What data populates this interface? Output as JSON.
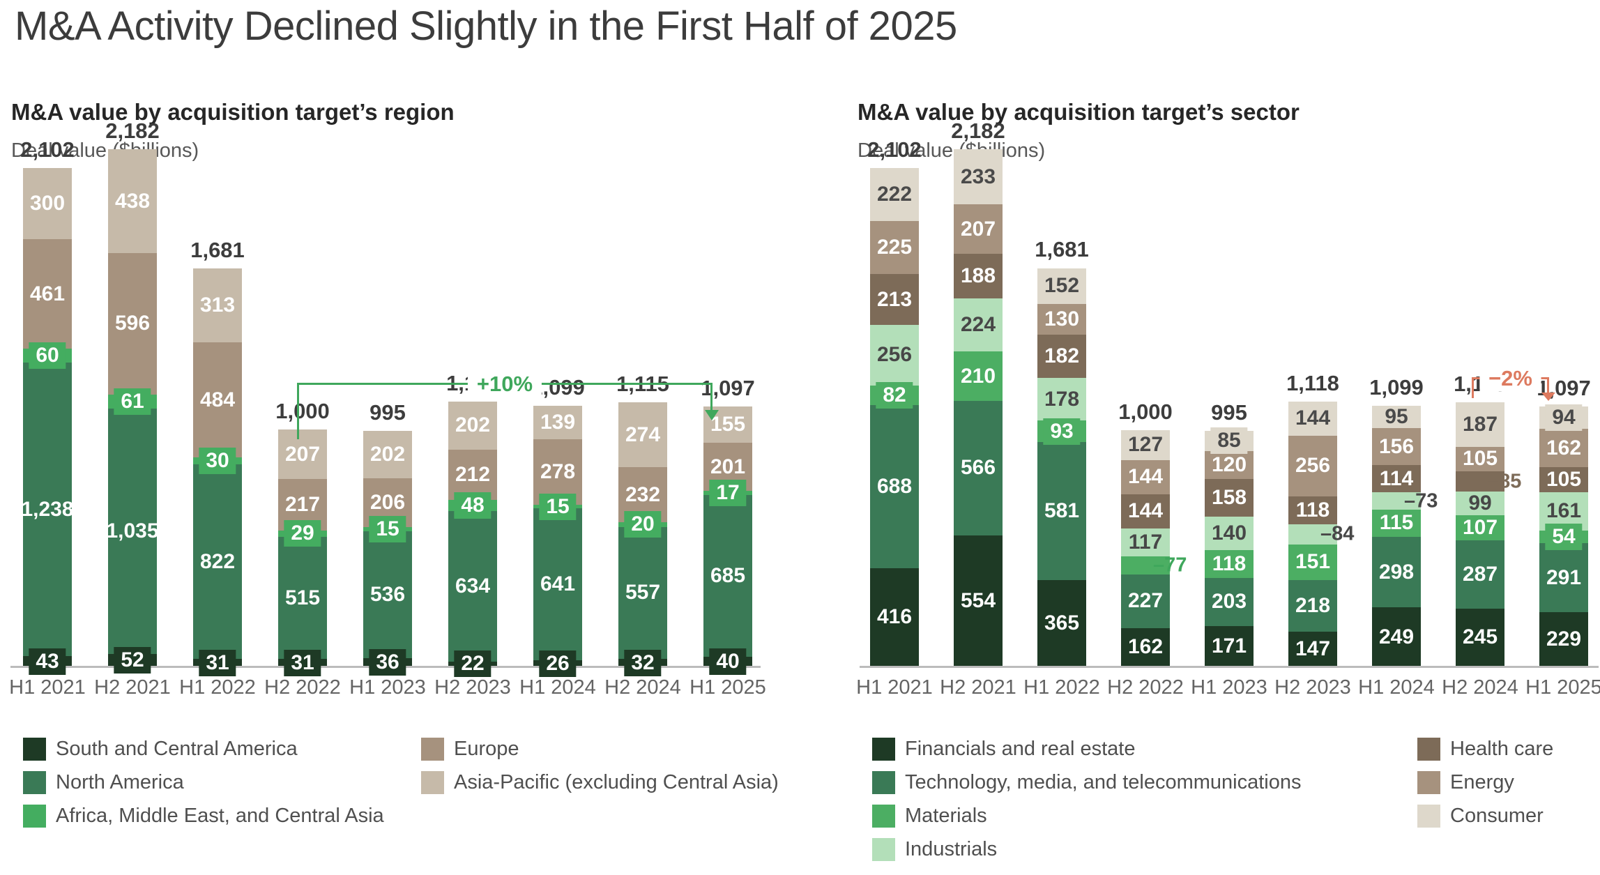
{
  "page_title": "M&A Activity Declined Slightly in the First Half of 2025",
  "chart_data": [
    {
      "type": "bar",
      "stacked": true,
      "title": "M&A value by acquisition target’s region",
      "subtitle": "Deal value ($billions)",
      "unit": "$billions",
      "gridlines": false,
      "legend_position": "bottom",
      "categories": [
        "H1 2021",
        "H2 2021",
        "H1 2022",
        "H2 2022",
        "H1 2023",
        "H2 2023",
        "H1 2024",
        "H2 2024",
        "H1 2025"
      ],
      "totals": [
        2102,
        2182,
        1681,
        1000,
        995,
        1118,
        1099,
        1115,
        1097
      ],
      "series": [
        {
          "name": "South and Central America",
          "color": "#1e3a25",
          "label_color": "#ffffff",
          "values": [
            43,
            52,
            31,
            31,
            36,
            22,
            26,
            32,
            40
          ]
        },
        {
          "name": "North America",
          "color": "#3a7a56",
          "label_color": "#ffffff",
          "values": [
            1238,
            1035,
            822,
            515,
            536,
            634,
            641,
            557,
            685
          ]
        },
        {
          "name": "Africa, Middle East, and Central Asia",
          "color": "#44ad60",
          "label_color": "#ffffff",
          "values": [
            60,
            61,
            30,
            29,
            15,
            48,
            15,
            20,
            17
          ]
        },
        {
          "name": "Europe",
          "color": "#a6927e",
          "label_color": "#ffffff",
          "values": [
            461,
            596,
            484,
            217,
            206,
            212,
            278,
            232,
            201
          ]
        },
        {
          "name": "Asia-Pacific (excluding Central Asia)",
          "color": "#c6baa9",
          "label_color": "#ffffff",
          "values": [
            300,
            438,
            313,
            207,
            202,
            202,
            139,
            274,
            155
          ]
        }
      ],
      "annotation": {
        "text": "+10%",
        "color": "#3fa75c",
        "from": "H2 2022",
        "to": "H1 2025"
      },
      "legend_columns": [
        [
          0,
          1,
          2
        ],
        [
          3,
          4
        ]
      ]
    },
    {
      "type": "bar",
      "stacked": true,
      "title": "M&A value by acquisition target’s sector",
      "subtitle": "Deal value ($billions)",
      "unit": "$billions",
      "gridlines": false,
      "legend_position": "bottom",
      "categories": [
        "H1 2021",
        "H2 2021",
        "H1 2022",
        "H2 2022",
        "H1 2023",
        "H2 2023",
        "H1 2024",
        "H2 2024",
        "H1 2025"
      ],
      "totals": [
        2102,
        2182,
        1681,
        1000,
        995,
        1118,
        1099,
        1115,
        1097
      ],
      "series": [
        {
          "name": "Financials and real estate",
          "color": "#1e3a25",
          "label_color": "#ffffff",
          "values": [
            416,
            554,
            365,
            162,
            171,
            147,
            249,
            245,
            229
          ]
        },
        {
          "name": "Technology, media, and telecommunications",
          "color": "#3a7a56",
          "label_color": "#ffffff",
          "values": [
            688,
            566,
            581,
            227,
            203,
            218,
            298,
            287,
            291
          ]
        },
        {
          "name": "Materials",
          "color": "#4cae63",
          "label_color": "#ffffff",
          "values": [
            82,
            210,
            93,
            77,
            118,
            151,
            115,
            107,
            54
          ],
          "outside_labels": {
            "3": "–77"
          },
          "outside_color": "#3fa75c"
        },
        {
          "name": "Industrials",
          "color": "#b3dfb9",
          "label_color": "#474747",
          "values": [
            256,
            224,
            178,
            117,
            140,
            84,
            73,
            99,
            161
          ],
          "outside_labels": {
            "5": "–84",
            "6": "–73"
          },
          "outside_color": "#474747"
        },
        {
          "name": "Health care",
          "color": "#7d6b58",
          "label_color": "#ffffff",
          "values": [
            213,
            188,
            182,
            144,
            158,
            118,
            114,
            85,
            105
          ],
          "outside_labels": {
            "7": "–85"
          },
          "outside_color": "#7d6b58"
        },
        {
          "name": "Energy",
          "color": "#a6927e",
          "label_color": "#ffffff",
          "values": [
            225,
            207,
            130,
            144,
            120,
            256,
            156,
            105,
            162
          ]
        },
        {
          "name": "Consumer",
          "color": "#ded8cb",
          "label_color": "#4a4a4a",
          "values": [
            222,
            233,
            152,
            127,
            85,
            144,
            95,
            187,
            94
          ]
        }
      ],
      "annotation": {
        "text": "−2%",
        "color": "#dd7a5f",
        "from": "H2 2024",
        "to": "H1 2025"
      },
      "legend_columns": [
        [
          0,
          1,
          2,
          3
        ],
        [
          4,
          5,
          6
        ]
      ]
    }
  ]
}
